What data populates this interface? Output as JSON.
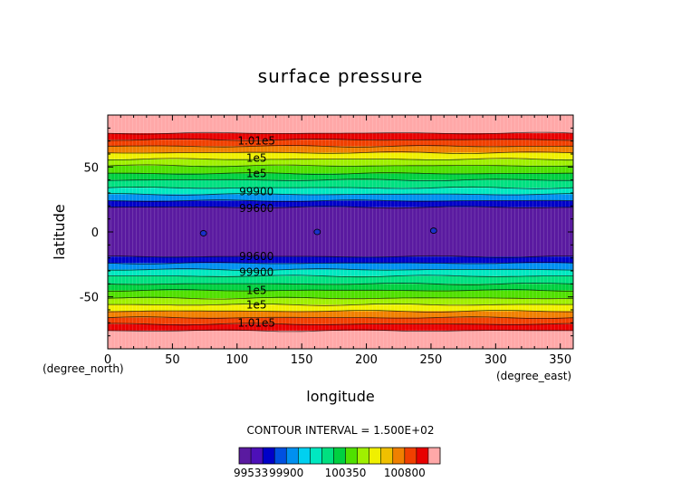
{
  "chart_data": {
    "type": "heatmap",
    "title": "surface pressure",
    "xlabel": "longitude",
    "ylabel": "latitude",
    "x_unit": "(degree_east)",
    "y_unit": "(degree_north)",
    "xlim": [
      0,
      360
    ],
    "ylim": [
      -90,
      90
    ],
    "x_ticks": [
      0,
      50,
      100,
      150,
      200,
      250,
      300,
      350
    ],
    "y_ticks": [
      -50,
      0,
      50
    ],
    "contour_interval_text": "CONTOUR INTERVAL = 1.500E+02",
    "colorbar": {
      "tick_labels": [
        "99533",
        "99900",
        "100350",
        "100800"
      ],
      "colors": [
        "#5a1aa0",
        "#4d10b8",
        "#0000c8",
        "#0050e0",
        "#0090f0",
        "#00d0f0",
        "#00e8c0",
        "#00e080",
        "#00d040",
        "#50e000",
        "#a0f000",
        "#f0f000",
        "#f0c000",
        "#f08000",
        "#f04000",
        "#e80000",
        "#ffa8a8"
      ]
    },
    "bands": [
      {
        "lat_min": 76,
        "lat_max": 90,
        "color": "#ffa8a8"
      },
      {
        "lat_min": 71,
        "lat_max": 76,
        "color": "#e80000"
      },
      {
        "lat_min": 66,
        "lat_max": 71,
        "color": "#f04000"
      },
      {
        "lat_min": 61,
        "lat_max": 66,
        "color": "#f08000"
      },
      {
        "lat_min": 56,
        "lat_max": 61,
        "color": "#f0f000"
      },
      {
        "lat_min": 51,
        "lat_max": 56,
        "color": "#a0f000"
      },
      {
        "lat_min": 45,
        "lat_max": 51,
        "color": "#50e000"
      },
      {
        "lat_min": 40,
        "lat_max": 45,
        "color": "#00d040"
      },
      {
        "lat_min": 34,
        "lat_max": 40,
        "color": "#00e080"
      },
      {
        "lat_min": 29,
        "lat_max": 34,
        "color": "#00e8c0"
      },
      {
        "lat_min": 24,
        "lat_max": 29,
        "color": "#0090f0"
      },
      {
        "lat_min": 19,
        "lat_max": 24,
        "color": "#0000c8"
      },
      {
        "lat_min": -19,
        "lat_max": 19,
        "color": "#5a1aa0"
      },
      {
        "lat_min": -24,
        "lat_max": -19,
        "color": "#0000c8"
      },
      {
        "lat_min": -29,
        "lat_max": -24,
        "color": "#0090f0"
      },
      {
        "lat_min": -34,
        "lat_max": -29,
        "color": "#00e8c0"
      },
      {
        "lat_min": -40,
        "lat_max": -34,
        "color": "#00e080"
      },
      {
        "lat_min": -45,
        "lat_max": -40,
        "color": "#00d040"
      },
      {
        "lat_min": -51,
        "lat_max": -45,
        "color": "#50e000"
      },
      {
        "lat_min": -56,
        "lat_max": -51,
        "color": "#a0f000"
      },
      {
        "lat_min": -61,
        "lat_max": -56,
        "color": "#f0f000"
      },
      {
        "lat_min": -66,
        "lat_max": -61,
        "color": "#f08000"
      },
      {
        "lat_min": -71,
        "lat_max": -66,
        "color": "#f04000"
      },
      {
        "lat_min": -76,
        "lat_max": -71,
        "color": "#e80000"
      },
      {
        "lat_min": -90,
        "lat_max": -76,
        "color": "#ffa8a8"
      }
    ],
    "contour_lines_lat": [
      76,
      71,
      66,
      61,
      56,
      51,
      45,
      40,
      34,
      29,
      24,
      19,
      -19,
      -24,
      -29,
      -34,
      -40,
      -45,
      -51,
      -56,
      -61,
      -66,
      -71,
      -76
    ],
    "contour_labels": [
      {
        "text": "1.01e5",
        "lon": 115,
        "lat": 70
      },
      {
        "text": "1e5",
        "lon": 115,
        "lat": 57
      },
      {
        "text": "1e5",
        "lon": 115,
        "lat": 45
      },
      {
        "text": "99900",
        "lon": 115,
        "lat": 31
      },
      {
        "text": "99600",
        "lon": 115,
        "lat": 18
      },
      {
        "text": "99600",
        "lon": 115,
        "lat": -19
      },
      {
        "text": "99900",
        "lon": 115,
        "lat": -31
      },
      {
        "text": "1e5",
        "lon": 115,
        "lat": -45
      },
      {
        "text": "1e5",
        "lon": 115,
        "lat": -56
      },
      {
        "text": "1.01e5",
        "lon": 115,
        "lat": -70
      }
    ],
    "lows": [
      {
        "lon": 74,
        "lat": -1
      },
      {
        "lon": 162,
        "lat": 0
      },
      {
        "lon": 252,
        "lat": 1
      }
    ]
  }
}
